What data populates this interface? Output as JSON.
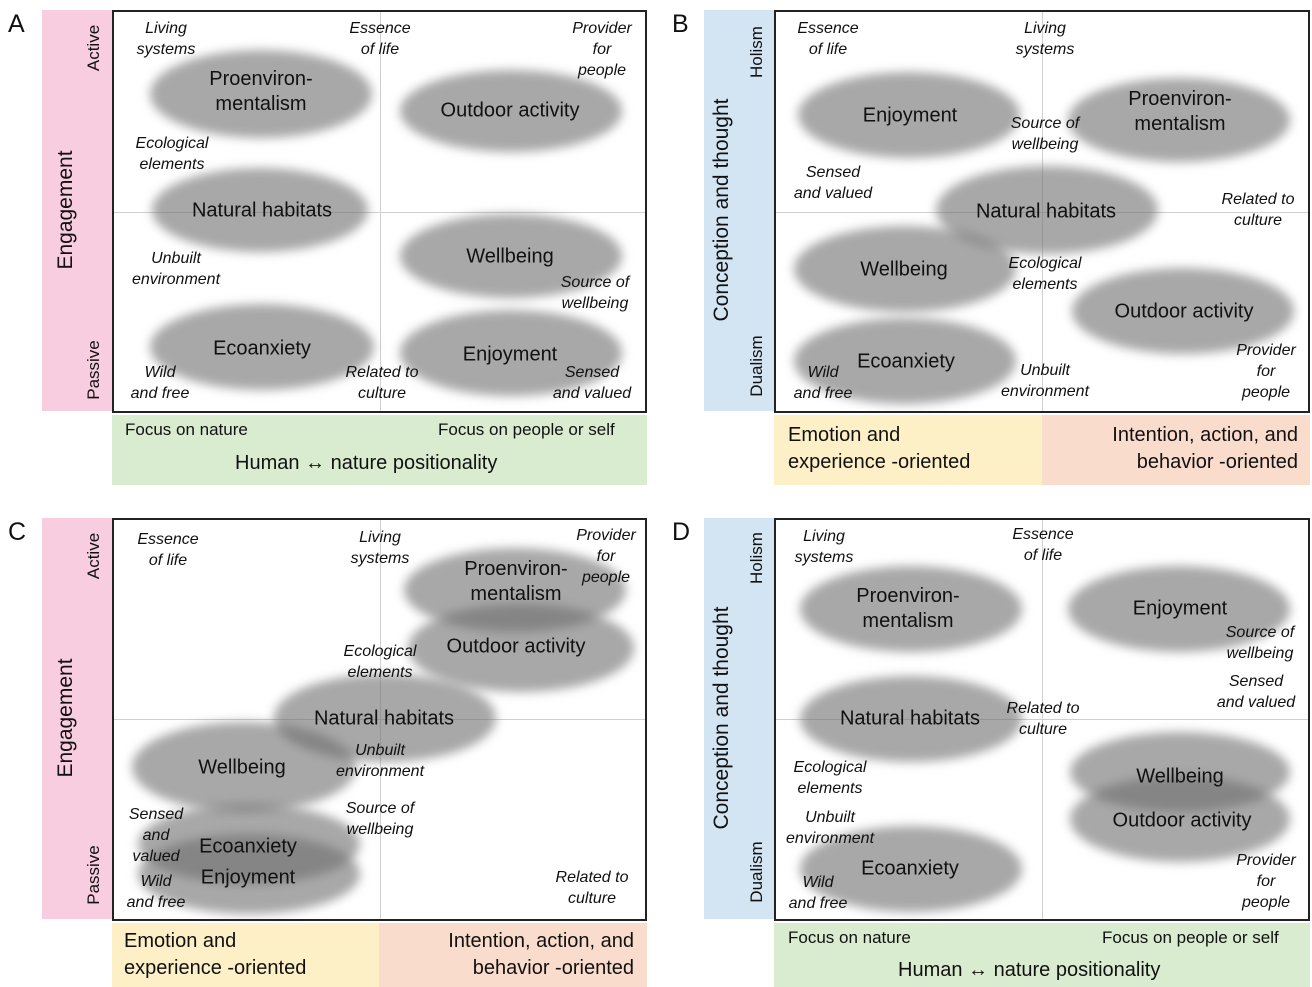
{
  "panels": {
    "A": {
      "letter": "A",
      "y_axis": {
        "title": "Engagement",
        "top": "Active",
        "bottom": "Passive"
      },
      "x_axis": {
        "left": "Focus on nature",
        "right": "Focus on people or self",
        "title": "Human ↔ nature positionality"
      },
      "categories": [
        "Proenviron-\nmentalism",
        "Outdoor activity",
        "Natural habitats",
        "Wellbeing",
        "Ecoanxiety",
        "Enjoyment"
      ],
      "terms": [
        "Living\nsystems",
        "Essence\nof life",
        "Provider\nfor\npeople",
        "Ecological\nelements",
        "Unbuilt\nenvironment",
        "Source of\nwellbeing",
        "Wild\nand free",
        "Related to\nculture",
        "Sensed\nand valued"
      ]
    },
    "B": {
      "letter": "B",
      "y_axis": {
        "title": "Conception and thought",
        "top": "Holism",
        "bottom": "Dualism"
      },
      "x_axis": {
        "left": "Emotion and\nexperience -oriented",
        "right": "Intention, action, and\nbehavior -oriented"
      },
      "categories": [
        "Enjoyment",
        "Proenviron-\nmentalism",
        "Natural habitats",
        "Wellbeing",
        "Outdoor activity",
        "Ecoanxiety"
      ],
      "terms": [
        "Essence\nof life",
        "Living\nsystems",
        "Source of\nwellbeing",
        "Sensed\nand valued",
        "Related to\nculture",
        "Ecological\nelements",
        "Wild\nand free",
        "Unbuilt\nenvironment",
        "Provider\nfor\npeople"
      ]
    },
    "C": {
      "letter": "C",
      "y_axis": {
        "title": "Engagement",
        "top": "Active",
        "bottom": "Passive"
      },
      "x_axis": {
        "left": "Emotion and\nexperience -oriented",
        "right": "Intention, action, and\nbehavior -oriented"
      },
      "categories": [
        "Proenviron-\nmentalism",
        "Outdoor activity",
        "Natural habitats",
        "Wellbeing",
        "Ecoanxiety",
        "Enjoyment"
      ],
      "terms": [
        "Essence\nof life",
        "Living\nsystems",
        "Provider\nfor\npeople",
        "Ecological\nelements",
        "Unbuilt\nenvironment",
        "Source of\nwellbeing",
        "Sensed\nand\nvalued",
        "Wild\nand free",
        "Related to\nculture"
      ]
    },
    "D": {
      "letter": "D",
      "y_axis": {
        "title": "Conception and thought",
        "top": "Holism",
        "bottom": "Dualism"
      },
      "x_axis": {
        "left": "Focus on nature",
        "right": "Focus on people or self",
        "title": "Human ↔ nature positionality"
      },
      "categories": [
        "Proenviron-\nmentalism",
        "Enjoyment",
        "Natural habitats",
        "Wellbeing",
        "Outdoor activity",
        "Ecoanxiety"
      ],
      "terms": [
        "Living\nsystems",
        "Essence\nof life",
        "Source of\nwellbeing",
        "Sensed\nand valued",
        "Related to\nculture",
        "Ecological\nelements",
        "Unbuilt\nenvironment",
        "Wild\nand free",
        "Provider\nfor\npeople"
      ]
    }
  }
}
